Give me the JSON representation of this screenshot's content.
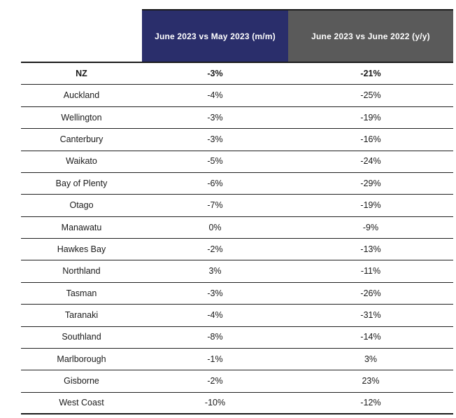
{
  "chart_data": {
    "type": "table",
    "title": "",
    "columns": [
      {
        "label": "June 2023 vs May 2023 (m/m)",
        "bg": "#2a2e6b"
      },
      {
        "label": "June 2023 vs June 2022 (y/y)",
        "bg": "#5a5a5a"
      }
    ],
    "rows": [
      {
        "region": "NZ",
        "m_m": "-3%",
        "y_y": "-21%",
        "bold": true
      },
      {
        "region": "Auckland",
        "m_m": "-4%",
        "y_y": "-25%"
      },
      {
        "region": "Wellington",
        "m_m": "-3%",
        "y_y": "-19%"
      },
      {
        "region": "Canterbury",
        "m_m": "-3%",
        "y_y": "-16%"
      },
      {
        "region": "Waikato",
        "m_m": "-5%",
        "y_y": "-24%"
      },
      {
        "region": "Bay of Plenty",
        "m_m": "-6%",
        "y_y": "-29%"
      },
      {
        "region": "Otago",
        "m_m": "-7%",
        "y_y": "-19%"
      },
      {
        "region": "Manawatu",
        "m_m": "0%",
        "y_y": "-9%"
      },
      {
        "region": "Hawkes Bay",
        "m_m": "-2%",
        "y_y": "-13%"
      },
      {
        "region": "Northland",
        "m_m": "3%",
        "y_y": "-11%"
      },
      {
        "region": "Tasman",
        "m_m": "-3%",
        "y_y": "-26%"
      },
      {
        "region": "Taranaki",
        "m_m": "-4%",
        "y_y": "-31%"
      },
      {
        "region": "Southland",
        "m_m": "-8%",
        "y_y": "-14%"
      },
      {
        "region": "Marlborough",
        "m_m": "-1%",
        "y_y": "3%"
      },
      {
        "region": "Gisborne",
        "m_m": "-2%",
        "y_y": "23%"
      },
      {
        "region": "West Coast",
        "m_m": "-10%",
        "y_y": "-12%"
      }
    ]
  },
  "styles": {
    "mm_header_bg": "#2a2e6b",
    "yy_header_bg": "#5a5a5a",
    "header_text_color": "#ffffff",
    "body_text_color": "#1a1a1a",
    "border_color": "#1a1a1a",
    "background": "#ffffff"
  }
}
